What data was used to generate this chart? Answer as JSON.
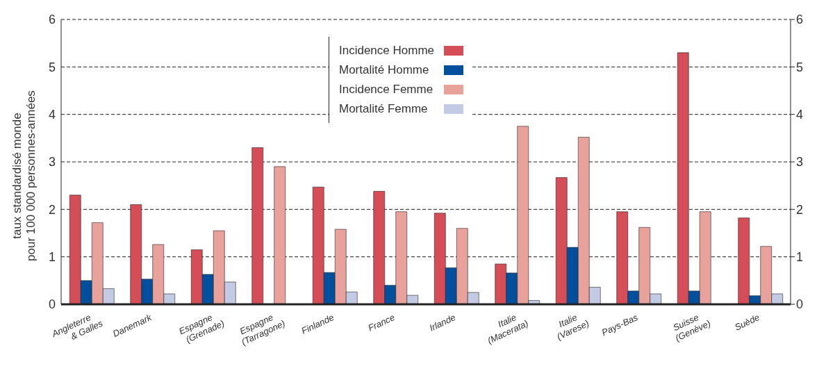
{
  "chart_data": {
    "type": "bar",
    "ylabel": "taux standardisé monde\npour 100 000 personnes-années",
    "categories": [
      "Angleterre\n& Galles",
      "Danemark",
      "Espagne\n(Grenade)",
      "Espagne\n(Tarragone)",
      "Finlande",
      "France",
      "Irlande",
      "Italie\n(Macerata)",
      "Italie\n(Varese)",
      "Pays-Bas",
      "Suisse\n(Genève)",
      "Suède"
    ],
    "series": [
      {
        "name": "Incidence Homme",
        "color": "#d44d57",
        "values": [
          2.3,
          2.1,
          1.15,
          3.3,
          2.47,
          2.38,
          1.92,
          0.85,
          2.67,
          1.95,
          5.3,
          1.82
        ]
      },
      {
        "name": "Mortalité Homme",
        "color": "#00509e",
        "values": [
          0.5,
          0.53,
          0.63,
          null,
          0.67,
          0.4,
          0.77,
          0.66,
          1.2,
          0.28,
          0.28,
          0.18
        ]
      },
      {
        "name": "Incidence Femme",
        "color": "#e9a29b",
        "values": [
          1.72,
          1.26,
          1.55,
          2.9,
          1.58,
          1.95,
          1.6,
          3.75,
          3.52,
          1.62,
          1.95,
          1.22
        ]
      },
      {
        "name": "Mortalité Femme",
        "color": "#c3cae4",
        "values": [
          0.33,
          0.22,
          0.47,
          null,
          0.26,
          0.19,
          0.25,
          0.08,
          0.36,
          0.22,
          null,
          0.22
        ]
      }
    ],
    "ylim": [
      0,
      6
    ],
    "yticks": [
      0,
      1,
      2,
      3,
      4,
      5,
      6
    ],
    "y2lim": [
      0,
      6
    ],
    "y2ticks": [
      0,
      1,
      2,
      3,
      4,
      5,
      6
    ],
    "grid": "y",
    "legend": "top"
  }
}
